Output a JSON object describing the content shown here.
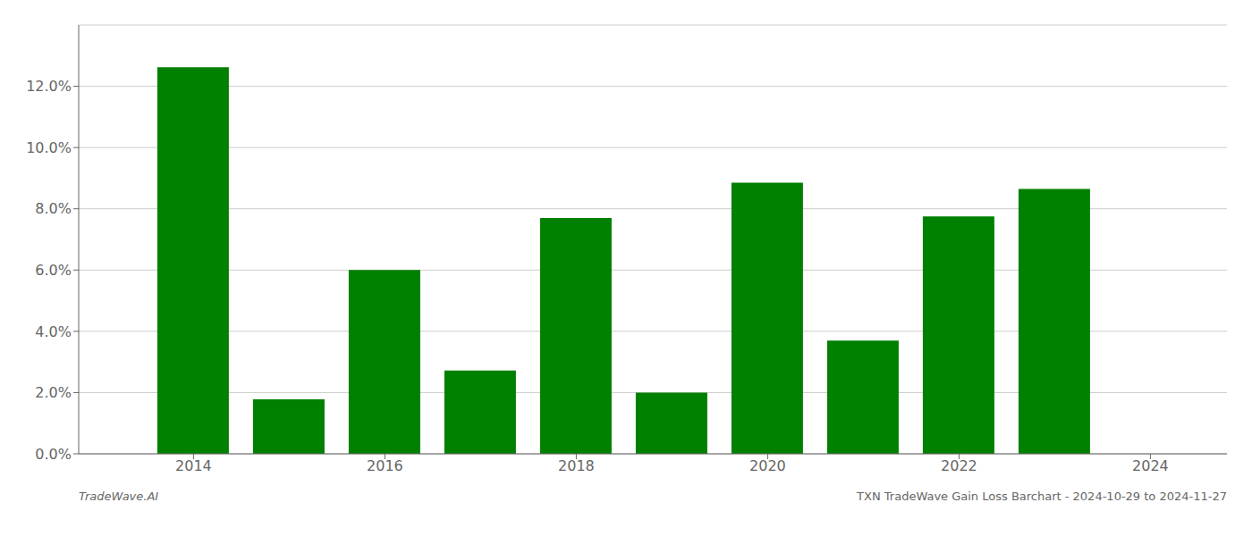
{
  "chart_data": {
    "type": "bar",
    "x": [
      2014,
      2015,
      2016,
      2017,
      2018,
      2019,
      2020,
      2021,
      2022,
      2023
    ],
    "values": [
      0.1262,
      0.0178,
      0.06,
      0.0272,
      0.077,
      0.02,
      0.0885,
      0.037,
      0.0775,
      0.0865
    ],
    "color": "#008000",
    "xlim": [
      2012.8,
      2024.8
    ],
    "xticks": [
      2014,
      2016,
      2018,
      2020,
      2022,
      2024
    ],
    "ylim": [
      0,
      0.14
    ],
    "yticks": [
      {
        "value": 0.0,
        "label": "0.0%"
      },
      {
        "value": 0.02,
        "label": "2.0%"
      },
      {
        "value": 0.04,
        "label": "4.0%"
      },
      {
        "value": 0.06,
        "label": "6.0%"
      },
      {
        "value": 0.08,
        "label": "8.0%"
      },
      {
        "value": 0.1,
        "label": "10.0%"
      },
      {
        "value": 0.12,
        "label": "12.0%"
      }
    ],
    "grid": true,
    "annotations": [
      "TradeWave.AI",
      "TXN TradeWave Gain Loss Barchart - 2024-10-29 to 2024-11-27"
    ]
  }
}
